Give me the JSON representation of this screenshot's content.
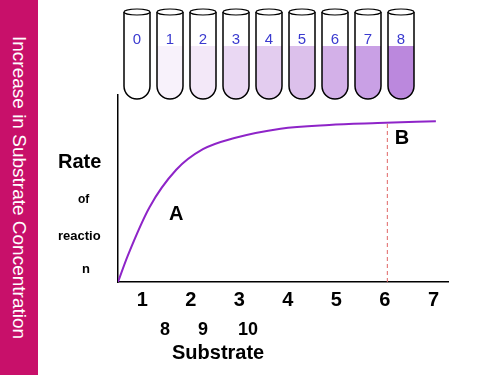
{
  "chart_data": {
    "type": "line",
    "banner": "Increase in Substrate Concentration",
    "y_label": [
      "Rate",
      "of",
      "reactio",
      "n"
    ],
    "x_label": "Substrate",
    "extra_labels": [
      "8",
      "9",
      "10"
    ],
    "x": [
      0.5,
      0.7,
      1.15,
      1.7,
      2.25,
      2.9,
      3.85,
      4.85,
      5.85,
      7.05
    ],
    "values": [
      0,
      1.4,
      4.0,
      6.0,
      7.1,
      7.7,
      8.2,
      8.4,
      8.5,
      8.6
    ],
    "color": "#8e24c8",
    "xlim": [
      0.5,
      7.3
    ],
    "xticks": [
      1,
      2,
      3,
      4,
      5,
      6,
      7
    ],
    "ylim": [
      0,
      10
    ],
    "tick_labels": "x",
    "grid": false,
    "tubes": {
      "labels": [
        0,
        1,
        2,
        3,
        4,
        5,
        6,
        7,
        8
      ],
      "colors": [
        "#ffffff",
        "#f8f2fb",
        "#f3e8f8",
        "#ead8f3",
        "#e3ccef",
        "#dcc0eb",
        "#d3b0e8",
        "#c9a0e5",
        "#bb88dd"
      ]
    },
    "reference_line": {
      "x": 6.05,
      "y": [
        0,
        8.5
      ],
      "color": "#e06666",
      "line_style": "dashed"
    },
    "annotations": [
      {
        "text": "A",
        "x": 1.7,
        "y": 3.6
      },
      {
        "text": "B",
        "x": 6.35,
        "y": 7.7
      }
    ]
  }
}
